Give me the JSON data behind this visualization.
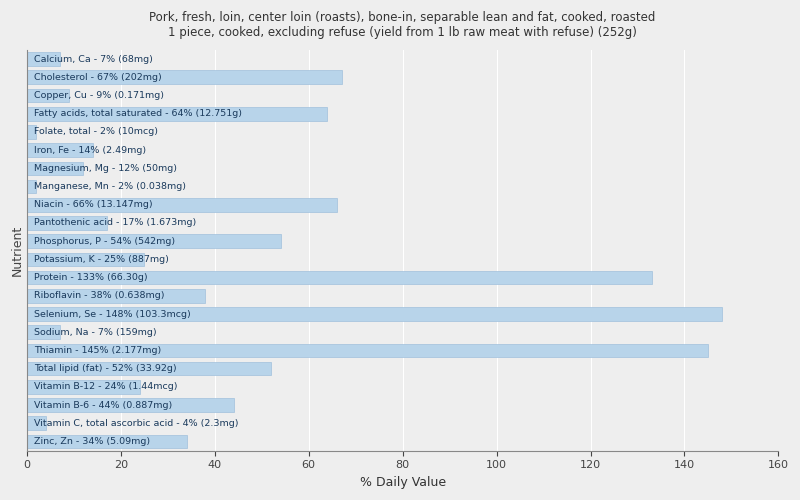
{
  "title": "Pork, fresh, loin, center loin (roasts), bone-in, separable lean and fat, cooked, roasted\n1 piece, cooked, excluding refuse (yield from 1 lb raw meat with refuse) (252g)",
  "xlabel": "% Daily Value",
  "ylabel": "Nutrient",
  "bar_color": "#b8d4ea",
  "bar_edge_color": "#a0c0dc",
  "background_color": "#eeeeee",
  "xlim": [
    0,
    160
  ],
  "xticks": [
    0,
    20,
    40,
    60,
    80,
    100,
    120,
    140,
    160
  ],
  "text_color": "#1a3a5c",
  "nutrients": [
    {
      "label": "Calcium, Ca - 7% (68mg)",
      "value": 7
    },
    {
      "label": "Cholesterol - 67% (202mg)",
      "value": 67
    },
    {
      "label": "Copper, Cu - 9% (0.171mg)",
      "value": 9
    },
    {
      "label": "Fatty acids, total saturated - 64% (12.751g)",
      "value": 64
    },
    {
      "label": "Folate, total - 2% (10mcg)",
      "value": 2
    },
    {
      "label": "Iron, Fe - 14% (2.49mg)",
      "value": 14
    },
    {
      "label": "Magnesium, Mg - 12% (50mg)",
      "value": 12
    },
    {
      "label": "Manganese, Mn - 2% (0.038mg)",
      "value": 2
    },
    {
      "label": "Niacin - 66% (13.147mg)",
      "value": 66
    },
    {
      "label": "Pantothenic acid - 17% (1.673mg)",
      "value": 17
    },
    {
      "label": "Phosphorus, P - 54% (542mg)",
      "value": 54
    },
    {
      "label": "Potassium, K - 25% (887mg)",
      "value": 25
    },
    {
      "label": "Protein - 133% (66.30g)",
      "value": 133
    },
    {
      "label": "Riboflavin - 38% (0.638mg)",
      "value": 38
    },
    {
      "label": "Selenium, Se - 148% (103.3mcg)",
      "value": 148
    },
    {
      "label": "Sodium, Na - 7% (159mg)",
      "value": 7
    },
    {
      "label": "Thiamin - 145% (2.177mg)",
      "value": 145
    },
    {
      "label": "Total lipid (fat) - 52% (33.92g)",
      "value": 52
    },
    {
      "label": "Vitamin B-12 - 24% (1.44mcg)",
      "value": 24
    },
    {
      "label": "Vitamin B-6 - 44% (0.887mg)",
      "value": 44
    },
    {
      "label": "Vitamin C, total ascorbic acid - 4% (2.3mg)",
      "value": 4
    },
    {
      "label": "Zinc, Zn - 34% (5.09mg)",
      "value": 34
    }
  ]
}
